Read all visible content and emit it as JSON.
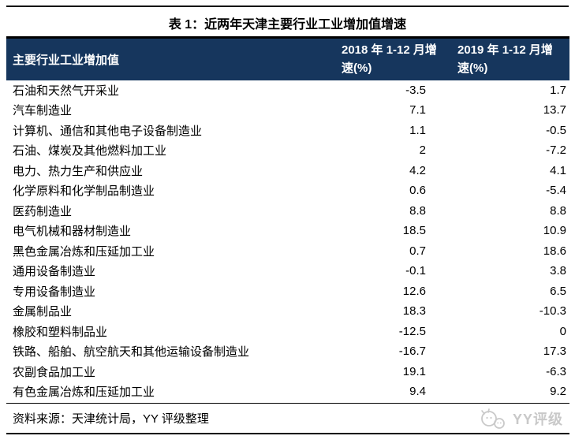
{
  "title": "表 1：近两年天津主要行业工业增加值增速",
  "table": {
    "columns": [
      {
        "label": "主要行业工业增加值"
      },
      {
        "line1": "2018 年 1-12 月增",
        "line2": "速(%)"
      },
      {
        "line1": "2019 年 1-12 月增",
        "line2": "速(%)"
      }
    ],
    "rows": [
      {
        "industry": "石油和天然气开采业",
        "y2018": "-3.5",
        "y2019": "1.7"
      },
      {
        "industry": "汽车制造业",
        "y2018": "7.1",
        "y2019": "13.7"
      },
      {
        "industry": "计算机、通信和其他电子设备制造业",
        "y2018": "1.1",
        "y2019": "-0.5"
      },
      {
        "industry": "石油、煤炭及其他燃料加工业",
        "y2018": "2",
        "y2019": "-7.2"
      },
      {
        "industry": "电力、热力生产和供应业",
        "y2018": "4.2",
        "y2019": "4.1"
      },
      {
        "industry": "化学原料和化学制品制造业",
        "y2018": "0.6",
        "y2019": "-5.4"
      },
      {
        "industry": "医药制造业",
        "y2018": "8.8",
        "y2019": "8.8"
      },
      {
        "industry": "电气机械和器材制造业",
        "y2018": "18.5",
        "y2019": "10.9"
      },
      {
        "industry": "黑色金属冶炼和压延加工业",
        "y2018": "0.7",
        "y2019": "18.6"
      },
      {
        "industry": "通用设备制造业",
        "y2018": "-0.1",
        "y2019": "3.8"
      },
      {
        "industry": "专用设备制造业",
        "y2018": "12.6",
        "y2019": "6.5"
      },
      {
        "industry": "金属制品业",
        "y2018": "18.3",
        "y2019": "-10.3"
      },
      {
        "industry": "橡胶和塑料制品业",
        "y2018": "-12.5",
        "y2019": "0"
      },
      {
        "industry": "铁路、船舶、航空航天和其他运输设备制造业",
        "y2018": "-16.7",
        "y2019": "17.3"
      },
      {
        "industry": "农副食品加工业",
        "y2018": "19.1",
        "y2019": "-6.3"
      },
      {
        "industry": "有色金属冶炼和压延加工业",
        "y2018": "9.4",
        "y2019": "9.2"
      }
    ]
  },
  "footer": {
    "source": "资料来源：天津统计局，YY 评级整理",
    "watermark": "YY评级"
  },
  "colors": {
    "header_bg": "#16365D",
    "header_text": "#FFFFFF",
    "rule": "#000000",
    "watermark": "#C9C9C9"
  },
  "chart_data": {
    "type": "table",
    "title": "表 1：近两年天津主要行业工业增加值增速",
    "columns": [
      "主要行业工业增加值",
      "2018 年 1-12 月增速(%)",
      "2019 年 1-12 月增速(%)"
    ],
    "rows": [
      [
        "石油和天然气开采业",
        -3.5,
        1.7
      ],
      [
        "汽车制造业",
        7.1,
        13.7
      ],
      [
        "计算机、通信和其他电子设备制造业",
        1.1,
        -0.5
      ],
      [
        "石油、煤炭及其他燃料加工业",
        2,
        -7.2
      ],
      [
        "电力、热力生产和供应业",
        4.2,
        4.1
      ],
      [
        "化学原料和化学制品制造业",
        0.6,
        -5.4
      ],
      [
        "医药制造业",
        8.8,
        8.8
      ],
      [
        "电气机械和器材制造业",
        18.5,
        10.9
      ],
      [
        "黑色金属冶炼和压延加工业",
        0.7,
        18.6
      ],
      [
        "通用设备制造业",
        -0.1,
        3.8
      ],
      [
        "专用设备制造业",
        12.6,
        6.5
      ],
      [
        "金属制品业",
        18.3,
        -10.3
      ],
      [
        "橡胶和塑料制品业",
        -12.5,
        0
      ],
      [
        "铁路、船舶、航空航天和其他运输设备制造业",
        -16.7,
        17.3
      ],
      [
        "农副食品加工业",
        19.1,
        -6.3
      ],
      [
        "有色金属冶炼和压延加工业",
        9.4,
        9.2
      ]
    ],
    "source_note": "资料来源：天津统计局，YY 评级整理"
  }
}
